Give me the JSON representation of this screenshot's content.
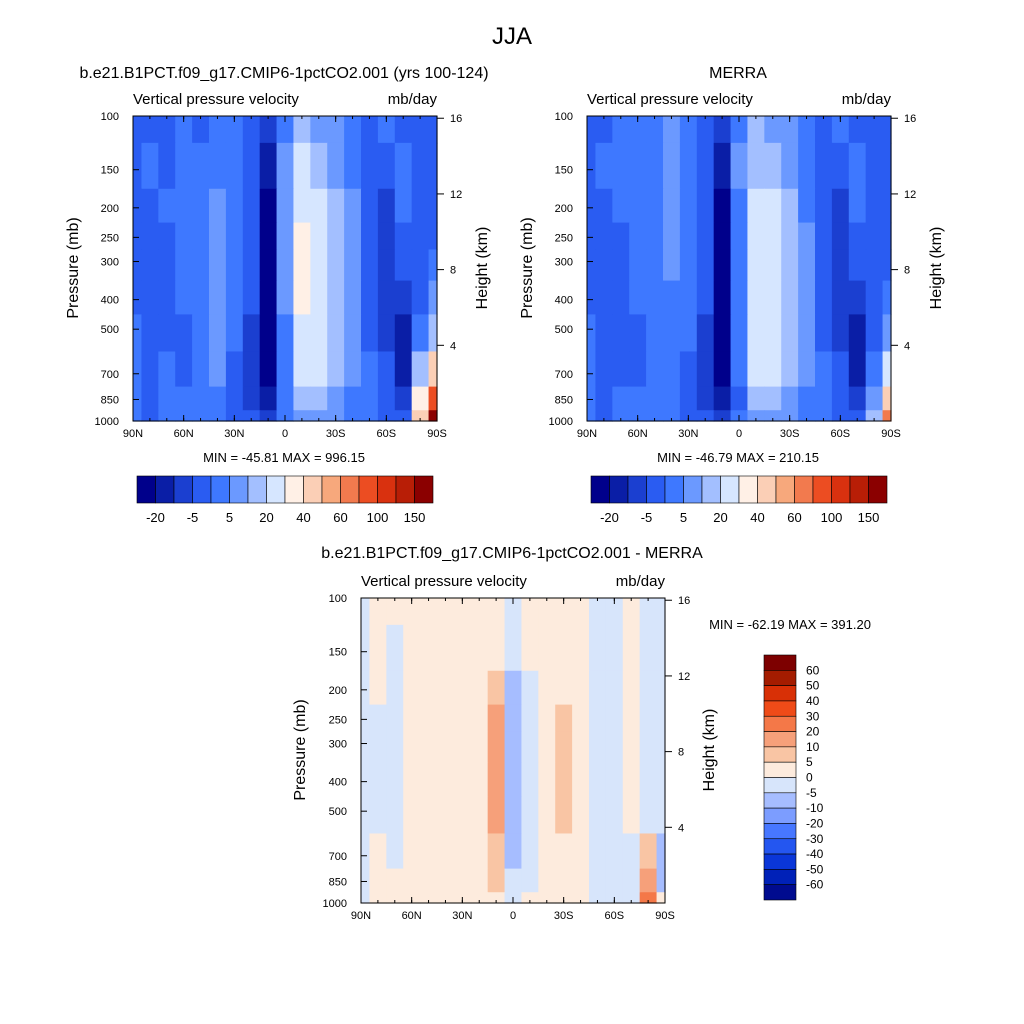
{
  "figure": {
    "title": "JJA"
  },
  "colors": {
    "abs_scale": [
      "#00008b",
      "#0a1ea6",
      "#1b3fd0",
      "#2a5cf2",
      "#3e78ff",
      "#6b99ff",
      "#a3bfff",
      "#d6e6ff",
      "#fff0e6",
      "#fbcfb6",
      "#f7a87c",
      "#f27a4e",
      "#ec4d22",
      "#d9310f",
      "#b81e06",
      "#8b0000"
    ],
    "diff_scale": [
      "#000b8f",
      "#0021b8",
      "#0a36d8",
      "#2456f0",
      "#4777ff",
      "#7c9dff",
      "#a6bdff",
      "#d7e5fb",
      "#fdebdd",
      "#f9c5a4",
      "#f6a07a",
      "#f47848",
      "#ef4b18",
      "#d83006",
      "#a41c00",
      "#7d0000"
    ]
  },
  "chart_data": [
    {
      "type": "heatmap",
      "id": "model",
      "title": "b.e21.B1PCT.f09_g17.CMIP6-1pctCO2.001 (yrs 100-124)",
      "left_label": "Vertical pressure velocity",
      "right_label": "mb/day",
      "xlabel": "",
      "ylabel": "Pressure (mb)",
      "ylabel_right": "Height (km)",
      "x_ticks": [
        "90N",
        "60N",
        "30N",
        "0",
        "30S",
        "60S",
        "90S"
      ],
      "y_ticks": [
        "100",
        "150",
        "200",
        "250",
        "300",
        "400",
        "500",
        "700",
        "850",
        "1000"
      ],
      "y_tick_values": [
        100,
        150,
        200,
        250,
        300,
        400,
        500,
        700,
        850,
        1000
      ],
      "height_ticks": [
        "16",
        "12",
        "8",
        "4"
      ],
      "height_tick_values": [
        16,
        12,
        8,
        4
      ],
      "ylim": [
        1000,
        100
      ],
      "xlim": [
        90,
        -90
      ],
      "stats": "MIN = -45.81  MAX = 996.15",
      "colorbar_labels": [
        "-20",
        "-5",
        "5",
        "20",
        "40",
        "60",
        "100",
        "150"
      ],
      "field": {
        "lat": [
          90,
          80,
          70,
          60,
          50,
          40,
          30,
          20,
          10,
          0,
          -10,
          -20,
          -30,
          -40,
          -50,
          -60,
          -70,
          -80,
          -90
        ],
        "lev": [
          100,
          150,
          200,
          250,
          300,
          400,
          500,
          700,
          850,
          1000
        ],
        "rows": [
          [
            3,
            3,
            3,
            4,
            3,
            4,
            4,
            3,
            2,
            4,
            6,
            5,
            5,
            4,
            3,
            4,
            3,
            3,
            3
          ],
          [
            3,
            4,
            3,
            4,
            4,
            4,
            4,
            3,
            1,
            5,
            7,
            6,
            5,
            4,
            3,
            3,
            4,
            3,
            3
          ],
          [
            3,
            3,
            4,
            4,
            4,
            5,
            4,
            3,
            0,
            5,
            7,
            7,
            6,
            5,
            3,
            2,
            4,
            3,
            3
          ],
          [
            3,
            3,
            3,
            4,
            4,
            5,
            4,
            3,
            0,
            5,
            8,
            7,
            6,
            5,
            3,
            2,
            3,
            3,
            3
          ],
          [
            3,
            3,
            3,
            4,
            4,
            5,
            4,
            3,
            0,
            5,
            8,
            7,
            6,
            5,
            3,
            2,
            3,
            3,
            4
          ],
          [
            3,
            3,
            3,
            4,
            4,
            5,
            4,
            3,
            0,
            5,
            8,
            7,
            6,
            5,
            3,
            2,
            2,
            3,
            5
          ],
          [
            4,
            3,
            3,
            3,
            4,
            5,
            4,
            2,
            0,
            4,
            7,
            7,
            6,
            5,
            3,
            2,
            1,
            4,
            6
          ],
          [
            4,
            3,
            4,
            3,
            4,
            5,
            3,
            2,
            0,
            4,
            7,
            7,
            6,
            5,
            4,
            3,
            1,
            6,
            9
          ],
          [
            4,
            3,
            4,
            4,
            4,
            4,
            3,
            2,
            1,
            4,
            6,
            6,
            5,
            4,
            4,
            3,
            2,
            8,
            12
          ],
          [
            4,
            3,
            4,
            4,
            4,
            4,
            3,
            3,
            2,
            4,
            5,
            5,
            5,
            4,
            4,
            3,
            3,
            9,
            15
          ]
        ]
      }
    },
    {
      "type": "heatmap",
      "id": "obs",
      "title": "MERRA",
      "left_label": "Vertical pressure velocity",
      "right_label": "mb/day",
      "xlabel": "",
      "ylabel": "Pressure (mb)",
      "ylabel_right": "Height (km)",
      "x_ticks": [
        "90N",
        "60N",
        "30N",
        "0",
        "30S",
        "60S",
        "90S"
      ],
      "y_ticks": [
        "100",
        "150",
        "200",
        "250",
        "300",
        "400",
        "500",
        "700",
        "850",
        "1000"
      ],
      "y_tick_values": [
        100,
        150,
        200,
        250,
        300,
        400,
        500,
        700,
        850,
        1000
      ],
      "height_ticks": [
        "16",
        "12",
        "8",
        "4"
      ],
      "height_tick_values": [
        16,
        12,
        8,
        4
      ],
      "ylim": [
        1000,
        100
      ],
      "xlim": [
        90,
        -90
      ],
      "stats": "MIN = -46.79  MAX = 210.15",
      "colorbar_labels": [
        "-20",
        "-5",
        "5",
        "20",
        "40",
        "60",
        "100",
        "150"
      ],
      "field": {
        "lat": [
          90,
          80,
          70,
          60,
          50,
          40,
          30,
          20,
          10,
          0,
          -10,
          -20,
          -30,
          -40,
          -50,
          -60,
          -70,
          -80,
          -90
        ],
        "lev": [
          100,
          150,
          200,
          250,
          300,
          400,
          500,
          700,
          850,
          1000
        ],
        "rows": [
          [
            3,
            3,
            4,
            4,
            4,
            5,
            4,
            3,
            2,
            4,
            6,
            5,
            5,
            4,
            3,
            4,
            3,
            3,
            3
          ],
          [
            3,
            4,
            4,
            4,
            4,
            5,
            4,
            3,
            1,
            5,
            6,
            6,
            5,
            4,
            3,
            3,
            4,
            3,
            3
          ],
          [
            3,
            3,
            4,
            4,
            4,
            5,
            4,
            3,
            0,
            4,
            7,
            7,
            6,
            4,
            3,
            2,
            4,
            3,
            3
          ],
          [
            3,
            3,
            3,
            4,
            4,
            5,
            4,
            3,
            0,
            4,
            7,
            7,
            6,
            5,
            3,
            2,
            3,
            3,
            3
          ],
          [
            3,
            3,
            3,
            4,
            4,
            5,
            4,
            3,
            0,
            4,
            7,
            7,
            6,
            5,
            3,
            2,
            3,
            3,
            3
          ],
          [
            3,
            3,
            3,
            4,
            4,
            4,
            4,
            3,
            0,
            4,
            7,
            7,
            6,
            5,
            3,
            2,
            2,
            3,
            4
          ],
          [
            4,
            3,
            3,
            3,
            4,
            4,
            4,
            2,
            0,
            4,
            7,
            7,
            6,
            5,
            3,
            2,
            1,
            3,
            5
          ],
          [
            4,
            3,
            3,
            3,
            4,
            4,
            3,
            2,
            0,
            4,
            7,
            7,
            6,
            5,
            4,
            3,
            1,
            4,
            7
          ],
          [
            4,
            3,
            4,
            4,
            4,
            4,
            3,
            2,
            1,
            3,
            6,
            6,
            5,
            4,
            4,
            3,
            2,
            5,
            9
          ],
          [
            4,
            3,
            4,
            4,
            4,
            4,
            3,
            3,
            2,
            4,
            5,
            5,
            5,
            4,
            4,
            3,
            3,
            6,
            11
          ]
        ]
      }
    },
    {
      "type": "heatmap",
      "id": "diff",
      "title": "b.e21.B1PCT.f09_g17.CMIP6-1pctCO2.001 - MERRA",
      "left_label": "Vertical pressure velocity",
      "right_label": "mb/day",
      "xlabel": "",
      "ylabel": "Pressure (mb)",
      "ylabel_right": "Height (km)",
      "x_ticks": [
        "90N",
        "60N",
        "30N",
        "0",
        "30S",
        "60S",
        "90S"
      ],
      "y_ticks": [
        "100",
        "150",
        "200",
        "250",
        "300",
        "400",
        "500",
        "700",
        "850",
        "1000"
      ],
      "y_tick_values": [
        100,
        150,
        200,
        250,
        300,
        400,
        500,
        700,
        850,
        1000
      ],
      "height_ticks": [
        "16",
        "12",
        "8",
        "4"
      ],
      "height_tick_values": [
        16,
        12,
        8,
        4
      ],
      "ylim": [
        1000,
        100
      ],
      "xlim": [
        90,
        -90
      ],
      "stats": "MIN = -62.19  MAX = 391.20",
      "colorbar_labels": [
        "60",
        "50",
        "40",
        "30",
        "20",
        "10",
        "5",
        "0",
        "-5",
        "-10",
        "-20",
        "-30",
        "-40",
        "-50",
        "-60"
      ],
      "field": {
        "lat": [
          90,
          80,
          70,
          60,
          50,
          40,
          30,
          20,
          10,
          0,
          -10,
          -20,
          -30,
          -40,
          -50,
          -60,
          -70,
          -80,
          -90
        ],
        "lev": [
          100,
          150,
          200,
          250,
          300,
          400,
          500,
          700,
          850,
          1000
        ],
        "rows": [
          [
            7,
            8,
            8,
            8,
            8,
            8,
            8,
            8,
            8,
            7,
            8,
            8,
            8,
            8,
            7,
            7,
            8,
            7,
            7
          ],
          [
            7,
            8,
            7,
            8,
            8,
            8,
            8,
            8,
            8,
            7,
            8,
            8,
            8,
            8,
            7,
            7,
            8,
            7,
            7
          ],
          [
            7,
            8,
            7,
            8,
            8,
            8,
            8,
            8,
            9,
            6,
            7,
            8,
            8,
            8,
            7,
            7,
            8,
            7,
            7
          ],
          [
            7,
            7,
            7,
            8,
            8,
            8,
            8,
            8,
            10,
            6,
            7,
            8,
            9,
            8,
            7,
            7,
            8,
            7,
            7
          ],
          [
            7,
            7,
            7,
            8,
            8,
            8,
            8,
            8,
            10,
            6,
            7,
            8,
            9,
            8,
            7,
            7,
            8,
            7,
            7
          ],
          [
            7,
            7,
            7,
            8,
            8,
            8,
            8,
            8,
            10,
            6,
            7,
            8,
            9,
            8,
            7,
            7,
            8,
            7,
            7
          ],
          [
            7,
            7,
            7,
            8,
            8,
            8,
            8,
            8,
            10,
            6,
            7,
            8,
            9,
            8,
            7,
            7,
            8,
            7,
            7
          ],
          [
            7,
            8,
            7,
            8,
            8,
            8,
            8,
            8,
            9,
            6,
            7,
            8,
            8,
            8,
            7,
            7,
            7,
            9,
            6
          ],
          [
            7,
            8,
            8,
            8,
            8,
            8,
            8,
            8,
            9,
            7,
            7,
            8,
            8,
            8,
            7,
            7,
            7,
            10,
            6
          ],
          [
            7,
            8,
            8,
            8,
            8,
            8,
            8,
            8,
            8,
            7,
            8,
            8,
            8,
            8,
            7,
            7,
            7,
            11,
            8
          ]
        ]
      }
    }
  ]
}
